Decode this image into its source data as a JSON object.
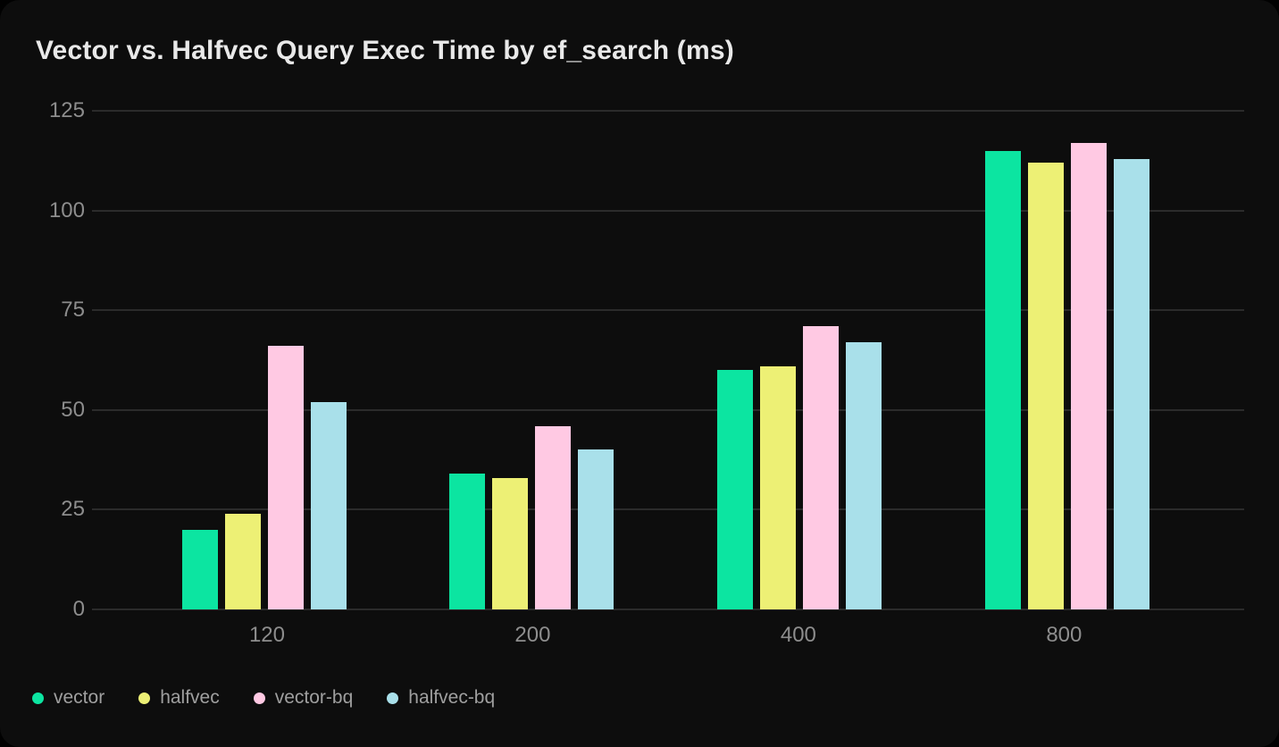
{
  "colors": {
    "page_background": "#010101",
    "card_background": "#0d0d0d",
    "title_text": "#e9e9e9",
    "axis_label_text": "#8d8d8d",
    "legend_text": "#9f9f9f",
    "gridline": "#2b2b2b"
  },
  "chart_data": {
    "type": "bar",
    "title": "Vector vs. Halfvec Query Exec Time by ef_search (ms)",
    "xlabel": "",
    "ylabel": "",
    "categories": [
      "120",
      "200",
      "400",
      "800"
    ],
    "series": [
      {
        "name": "vector",
        "color": "#0ce5a1",
        "values": [
          20,
          34,
          60,
          115
        ]
      },
      {
        "name": "halfvec",
        "color": "#edf075",
        "values": [
          24,
          33,
          61,
          112
        ]
      },
      {
        "name": "vector-bq",
        "color": "#ffc9e3",
        "values": [
          66,
          46,
          71,
          117
        ]
      },
      {
        "name": "halfvec-bq",
        "color": "#a9e0ea",
        "values": [
          52,
          40,
          67,
          113
        ]
      }
    ],
    "y_ticks": [
      0,
      25,
      50,
      75,
      100,
      125
    ],
    "ylim": [
      0,
      125
    ],
    "grid": true,
    "legend_position": "bottom-left"
  }
}
